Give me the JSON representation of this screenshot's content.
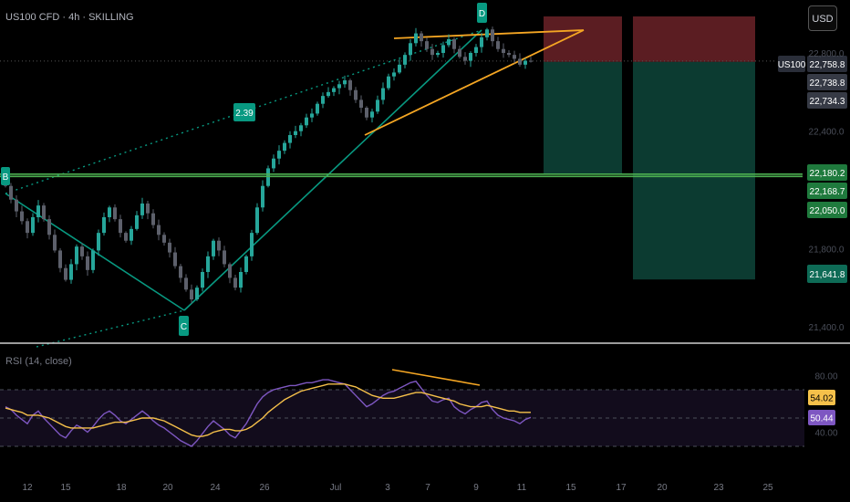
{
  "header": {
    "symbol_line": "US100 CFD · 4h · SKILLING",
    "currency_button": "USD"
  },
  "price_tag": {
    "symbol": "US100",
    "current": "22,758.8",
    "other": [
      "22,738.8",
      "22,734.3"
    ]
  },
  "colors": {
    "bg": "#000000",
    "teal": "#089981",
    "green_line": "#4caf50",
    "orange": "#f5a623",
    "rsi": "#7e57c2",
    "rsi_ma": "#f5c04a",
    "stop_zone": "#5b1d22",
    "target_zone": "#0c3b31"
  },
  "levels": [
    {
      "label": "22,180.2",
      "price": 22180.2
    },
    {
      "label": "22,168.7",
      "price": 22168.7
    },
    {
      "label": "22,050.0",
      "price": 22050.0
    },
    {
      "label": "21,641.8",
      "price": 21641.8
    }
  ],
  "pattern_labels": {
    "b": "B",
    "c": "C",
    "d": "D",
    "ratio": "2.39"
  },
  "rsi": {
    "title": "RSI (14, close)",
    "value_ma": "54.02",
    "value": "50.44"
  },
  "chart_data": [
    {
      "type": "candlestick",
      "title": "US100 CFD · 4h · SKILLING",
      "y_ticks": [
        21400,
        21800,
        22400,
        22800
      ],
      "y_tick_labels": [
        "21,400.0",
        "21,800.0",
        "22,400.0",
        "22,800.0"
      ],
      "ylim": [
        21240,
        23130
      ],
      "x_tick_labels": [
        "12",
        "15",
        "18",
        "20",
        "24",
        "26",
        "Jul",
        "3",
        "7",
        "9",
        "11",
        "15",
        "17",
        "20",
        "23",
        "25"
      ],
      "closes": [
        22120,
        22050,
        21990,
        21940,
        21880,
        21960,
        22020,
        21950,
        21870,
        21790,
        21700,
        21640,
        21720,
        21810,
        21760,
        21690,
        21790,
        21880,
        21960,
        22010,
        21950,
        21880,
        21840,
        21900,
        21970,
        22030,
        21980,
        21920,
        21870,
        21830,
        21780,
        21710,
        21650,
        21590,
        21540,
        21600,
        21680,
        21760,
        21840,
        21790,
        21720,
        21650,
        21600,
        21680,
        21760,
        21880,
        22010,
        22120,
        22210,
        22260,
        22300,
        22340,
        22380,
        22400,
        22430,
        22470,
        22490,
        22540,
        22580,
        22600,
        22620,
        22640,
        22660,
        22610,
        22560,
        22520,
        22470,
        22500,
        22560,
        22620,
        22680,
        22700,
        22740,
        22790,
        22850,
        22900,
        22860,
        22820,
        22790,
        22800,
        22840,
        22870,
        22820,
        22780,
        22760,
        22800,
        22830,
        22880,
        22920,
        22860,
        22820,
        22800,
        22790,
        22770,
        22740,
        22760,
        22758.8
      ],
      "levels": [
        22180.2,
        22168.7,
        22050.0,
        21641.8
      ],
      "patterns": {
        "points": [
          "B",
          "C",
          "D"
        ],
        "ratio": "2.39"
      },
      "position": {
        "entry": 22758.8,
        "stop_top": 23150,
        "targets": [
          22180.2,
          21641.8
        ]
      },
      "grid": false
    },
    {
      "type": "line",
      "title": "RSI (14, close)",
      "y_ticks": [
        40,
        80
      ],
      "y_tick_labels": [
        "40.00",
        "80.00"
      ],
      "ylim": [
        20,
        90
      ],
      "reference_lines": [
        70,
        50,
        30
      ],
      "series": [
        {
          "name": "RSI",
          "values": [
            58,
            56,
            52,
            49,
            46,
            52,
            55,
            50,
            46,
            42,
            38,
            36,
            41,
            45,
            43,
            40,
            44,
            49,
            53,
            55,
            52,
            48,
            46,
            49,
            52,
            55,
            52,
            48,
            45,
            43,
            40,
            37,
            34,
            32,
            30,
            34,
            39,
            44,
            48,
            45,
            42,
            38,
            36,
            41,
            46,
            53,
            60,
            65,
            68,
            70,
            71,
            72,
            73,
            73,
            74,
            75,
            75,
            76,
            77,
            77,
            76,
            75,
            74,
            70,
            66,
            62,
            58,
            60,
            63,
            66,
            68,
            69,
            71,
            73,
            75,
            76,
            71,
            66,
            62,
            61,
            63,
            64,
            58,
            55,
            53,
            56,
            58,
            61,
            62,
            56,
            52,
            50,
            49,
            48,
            46,
            49,
            50.44
          ]
        },
        {
          "name": "RSI-based MA",
          "values": [
            57,
            56,
            55,
            54,
            52,
            52,
            52,
            51,
            50,
            48,
            46,
            44,
            43,
            43,
            43,
            43,
            43,
            44,
            45,
            46,
            47,
            47,
            47,
            48,
            49,
            50,
            50,
            50,
            49,
            48,
            46,
            44,
            42,
            40,
            38,
            37,
            37,
            38,
            40,
            41,
            42,
            42,
            41,
            41,
            42,
            44,
            47,
            50,
            54,
            57,
            60,
            63,
            65,
            67,
            69,
            70,
            71,
            72,
            73,
            74,
            74,
            74,
            74,
            73,
            72,
            70,
            68,
            66,
            65,
            64,
            64,
            64,
            65,
            66,
            67,
            68,
            68,
            67,
            66,
            65,
            64,
            63,
            62,
            60,
            59,
            58,
            58,
            58,
            59,
            58,
            57,
            56,
            55,
            55,
            54,
            54,
            54.02
          ]
        }
      ]
    }
  ]
}
